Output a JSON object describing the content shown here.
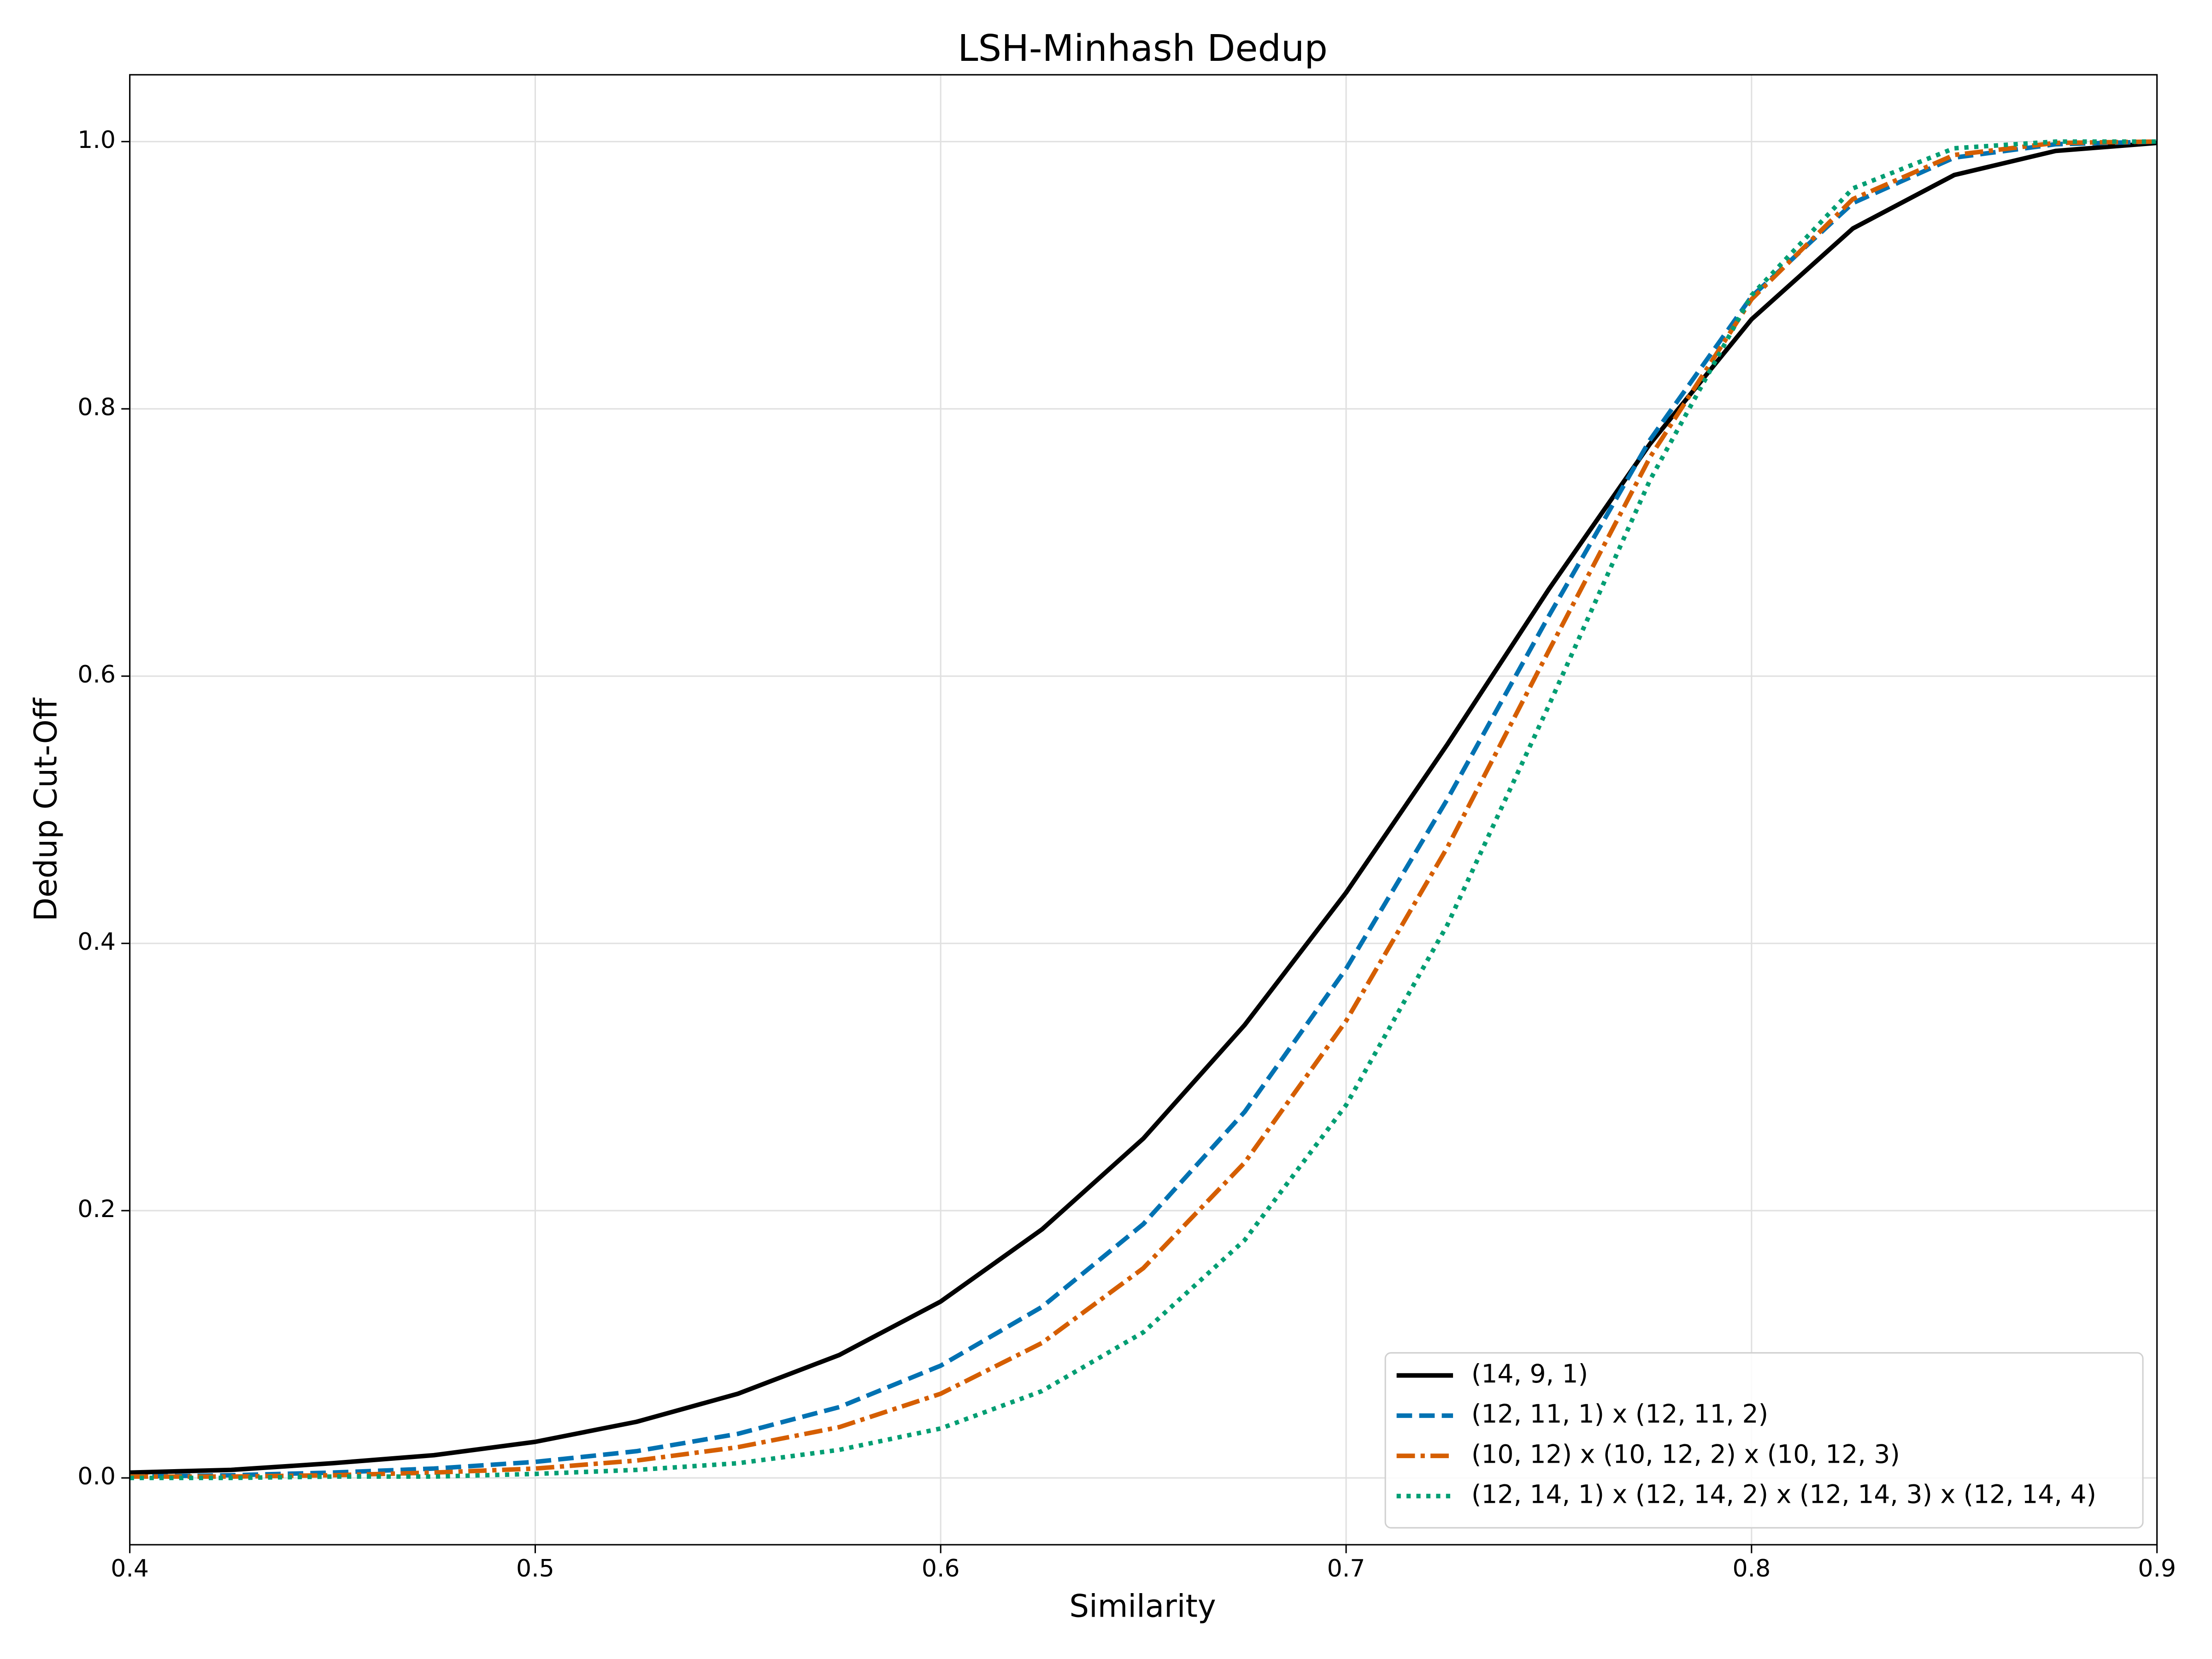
{
  "chart_data": {
    "type": "line",
    "title": "LSH-Minhash Dedup",
    "x_label": "Similarity",
    "y_label": "Dedup Cut-Off",
    "x": [
      0.4,
      0.425,
      0.45,
      0.475,
      0.5,
      0.525,
      0.55,
      0.575,
      0.6,
      0.625,
      0.65,
      0.675,
      0.7,
      0.725,
      0.75,
      0.775,
      0.8,
      0.825,
      0.85,
      0.875,
      0.9
    ],
    "series": [
      {
        "name": "(14, 9, 1)",
        "color": "#000000",
        "linestyle": "solid",
        "values": [
          0.004,
          0.006,
          0.011,
          0.017,
          0.027,
          0.042,
          0.063,
          0.092,
          0.132,
          0.186,
          0.254,
          0.339,
          0.438,
          0.549,
          0.665,
          0.774,
          0.867,
          0.935,
          0.975,
          0.993,
          0.999
        ]
      },
      {
        "name": "(12, 11, 1) x (12, 11, 2)",
        "color": "#0072b2",
        "linestyle": "dashed",
        "values": [
          0.001,
          0.002,
          0.004,
          0.007,
          0.012,
          0.02,
          0.033,
          0.053,
          0.084,
          0.128,
          0.19,
          0.274,
          0.381,
          0.508,
          0.645,
          0.777,
          0.884,
          0.954,
          0.988,
          0.998,
          1.0
        ]
      },
      {
        "name": "(10, 12) x (10, 12, 2) x (10, 12, 3)",
        "color": "#d55e00",
        "linestyle": "dashdot",
        "values": [
          0.001,
          0.001,
          0.002,
          0.004,
          0.007,
          0.013,
          0.023,
          0.038,
          0.063,
          0.101,
          0.157,
          0.236,
          0.342,
          0.472,
          0.619,
          0.764,
          0.882,
          0.957,
          0.99,
          0.999,
          1.0
        ]
      },
      {
        "name": "(12, 14, 1) x (12, 14, 2) x (12, 14, 3) x (12, 14, 4)",
        "color": "#009e73",
        "linestyle": "dotted",
        "values": [
          0.0,
          0.0,
          0.001,
          0.001,
          0.003,
          0.006,
          0.011,
          0.021,
          0.037,
          0.065,
          0.109,
          0.178,
          0.279,
          0.414,
          0.578,
          0.747,
          0.885,
          0.965,
          0.995,
          1.0,
          1.0
        ]
      }
    ],
    "xlim": [
      0.4,
      0.9
    ],
    "xticks": [
      0.4,
      0.5,
      0.6,
      0.7,
      0.8,
      0.9
    ],
    "ylim": [
      -0.05,
      1.05
    ],
    "yticks": [
      {
        "value": 0,
        "label": "0.0"
      },
      0.2,
      0.4,
      0.6,
      0.8,
      {
        "value": 1,
        "label": "1.0"
      }
    ],
    "grid": true,
    "legend": "lower right"
  }
}
